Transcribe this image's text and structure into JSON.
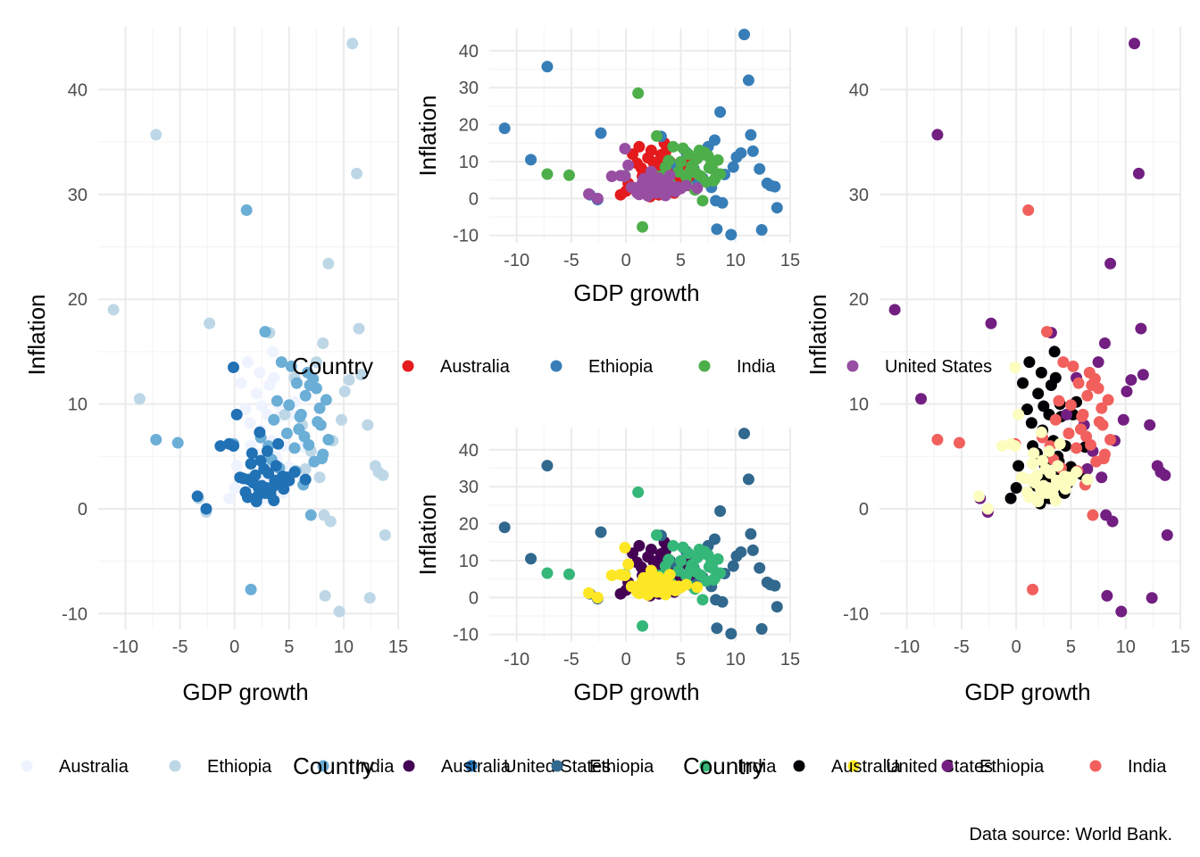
{
  "caption": "Data source: World Bank.",
  "legend_title": "Country",
  "countries": [
    "Australia",
    "Ethiopia",
    "India",
    "United States"
  ],
  "palettes": {
    "set1": [
      "#e41a1c",
      "#377eb8",
      "#4daf4a",
      "#984ea3"
    ],
    "blues": [
      "#eff3ff",
      "#bdd7e7",
      "#6baed6",
      "#2171b5"
    ],
    "viridis": [
      "#440154",
      "#31688e",
      "#35b779",
      "#fde725"
    ],
    "magma": [
      "#000004",
      "#721f81",
      "#f1605d",
      "#fcfdbf"
    ]
  },
  "chart_data": [
    {
      "id": "A",
      "type": "scatter",
      "xlabel": "GDP growth",
      "ylabel": "Inflation",
      "xlim": [
        -12.5,
        15
      ],
      "ylim": [
        -11.5,
        46
      ],
      "x_ticks": [
        -10,
        -5,
        0,
        5,
        10,
        15
      ],
      "y_ticks": [
        -10,
        0,
        10,
        20,
        30,
        40
      ],
      "palette": "blues",
      "grid": true
    },
    {
      "id": "B",
      "type": "scatter",
      "xlabel": "GDP growth",
      "ylabel": "Inflation",
      "xlim": [
        -12.5,
        15
      ],
      "ylim": [
        -12,
        46
      ],
      "x_ticks": [
        -10,
        -5,
        0,
        5,
        10,
        15
      ],
      "y_ticks": [
        -10,
        0,
        10,
        20,
        30,
        40
      ],
      "palette": "set1",
      "grid": true,
      "legend": "bottom"
    },
    {
      "id": "C",
      "type": "scatter",
      "xlabel": "GDP growth",
      "ylabel": "Inflation",
      "xlim": [
        -12.5,
        15
      ],
      "ylim": [
        -12,
        46
      ],
      "x_ticks": [
        -10,
        -5,
        0,
        5,
        10,
        15
      ],
      "y_ticks": [
        -10,
        0,
        10,
        20,
        30,
        40
      ],
      "palette": "viridis",
      "grid": true
    },
    {
      "id": "D",
      "type": "scatter",
      "xlabel": "GDP growth",
      "ylabel": "Inflation",
      "xlim": [
        -12.5,
        15
      ],
      "ylim": [
        -11.5,
        46
      ],
      "x_ticks": [
        -10,
        -5,
        0,
        5,
        10,
        15
      ],
      "y_ticks": [
        -10,
        0,
        10,
        20,
        30,
        40
      ],
      "palette": "magma",
      "grid": true
    }
  ],
  "series_data": {
    "Australia": [
      [
        3.8,
        5.0
      ],
      [
        2.1,
        3.0
      ],
      [
        1.5,
        6.0
      ],
      [
        4.2,
        2.0
      ],
      [
        3.0,
        9.0
      ],
      [
        1.2,
        14.0
      ],
      [
        3.5,
        15.0
      ],
      [
        2.0,
        11.0
      ],
      [
        5.2,
        9.0
      ],
      [
        2.4,
        7.5
      ],
      [
        4.5,
        6.0
      ],
      [
        0.6,
        12.0
      ],
      [
        3.9,
        4.5
      ],
      [
        2.8,
        3.2
      ],
      [
        3.3,
        2.5
      ],
      [
        4.4,
        1.5
      ],
      [
        2.6,
        4.2
      ],
      [
        3.0,
        1.0
      ],
      [
        1.8,
        2.2
      ],
      [
        3.7,
        3.6
      ],
      [
        4.0,
        10.0
      ],
      [
        1.0,
        9.5
      ],
      [
        2.2,
        0.5
      ],
      [
        0.0,
        2.0
      ],
      [
        2.9,
        4.7
      ],
      [
        3.4,
        6.5
      ],
      [
        5.0,
        4.0
      ],
      [
        6.0,
        3.3
      ],
      [
        2.7,
        1.8
      ],
      [
        3.9,
        2.8
      ],
      [
        4.7,
        2.4
      ],
      [
        2.5,
        9.8
      ],
      [
        3.6,
        12.5
      ],
      [
        1.4,
        8.2
      ],
      [
        0.2,
        4.1
      ],
      [
        -0.5,
        1.0
      ],
      [
        4.1,
        8.8
      ],
      [
        2.3,
        13.0
      ],
      [
        3.2,
        11.8
      ],
      [
        5.5,
        10.2
      ],
      [
        6.3,
        5.9
      ],
      [
        1.9,
        5.3
      ]
    ],
    "Ethiopia": [
      [
        10.8,
        44.4
      ],
      [
        -7.2,
        35.7
      ],
      [
        11.2,
        32.0
      ],
      [
        8.6,
        23.4
      ],
      [
        -11.1,
        19.0
      ],
      [
        11.4,
        17.2
      ],
      [
        12.2,
        8.0
      ],
      [
        -8.7,
        10.5
      ],
      [
        13.2,
        3.5
      ],
      [
        13.6,
        3.2
      ],
      [
        13.8,
        -2.5
      ],
      [
        12.4,
        -8.5
      ],
      [
        9.6,
        -9.8
      ],
      [
        8.3,
        -8.3
      ],
      [
        8.2,
        -0.6
      ],
      [
        8.1,
        15.8
      ],
      [
        9.0,
        6.5
      ],
      [
        10.5,
        12.3
      ],
      [
        11.6,
        12.8
      ],
      [
        7.0,
        5.5
      ],
      [
        6.2,
        8.0
      ],
      [
        9.8,
        8.5
      ],
      [
        10.1,
        11.2
      ],
      [
        -2.3,
        17.7
      ],
      [
        -3.3,
        1.0
      ],
      [
        -2.6,
        -0.3
      ],
      [
        6.5,
        3.8
      ],
      [
        5.5,
        12.5
      ],
      [
        7.5,
        14.0
      ],
      [
        4.6,
        9.0
      ],
      [
        3.2,
        16.8
      ],
      [
        8.8,
        -1.2
      ],
      [
        7.8,
        3.0
      ],
      [
        12.9,
        4.1
      ]
    ],
    "India": [
      [
        1.1,
        28.5
      ],
      [
        -7.2,
        6.6
      ],
      [
        -5.2,
        6.3
      ],
      [
        -0.1,
        6.2
      ],
      [
        1.5,
        -7.7
      ],
      [
        2.8,
        16.9
      ],
      [
        4.3,
        14.0
      ],
      [
        5.2,
        13.6
      ],
      [
        6.7,
        13.0
      ],
      [
        7.2,
        12.4
      ],
      [
        6.5,
        10.8
      ],
      [
        7.5,
        11.5
      ],
      [
        6.1,
        9.0
      ],
      [
        5.0,
        9.9
      ],
      [
        6.0,
        8.8
      ],
      [
        8.4,
        10.4
      ],
      [
        7.8,
        9.6
      ],
      [
        3.6,
        8.5
      ],
      [
        4.8,
        7.2
      ],
      [
        5.5,
        5.8
      ],
      [
        6.8,
        6.1
      ],
      [
        7.3,
        4.5
      ],
      [
        8.1,
        5.2
      ],
      [
        3.1,
        6.0
      ],
      [
        4.1,
        3.9
      ],
      [
        6.3,
        2.3
      ],
      [
        5.6,
        3.6
      ],
      [
        7.9,
        8.0
      ],
      [
        8.6,
        6.6
      ],
      [
        6.9,
        11.8
      ],
      [
        5.7,
        12.0
      ],
      [
        3.9,
        10.3
      ],
      [
        7.0,
        -0.6
      ],
      [
        8.0,
        4.8
      ],
      [
        4.5,
        2.5
      ],
      [
        5.9,
        7.6
      ],
      [
        6.4,
        6.9
      ],
      [
        7.6,
        8.3
      ],
      [
        3.4,
        4.7
      ],
      [
        2.4,
        6.8
      ]
    ],
    "United States": [
      [
        -2.6,
        0.0
      ],
      [
        -3.4,
        1.2
      ],
      [
        -0.1,
        6.0
      ],
      [
        1.3,
        2.8
      ],
      [
        2.2,
        2.0
      ],
      [
        3.5,
        2.1
      ],
      [
        4.2,
        2.5
      ],
      [
        2.8,
        1.5
      ],
      [
        1.9,
        3.2
      ],
      [
        3.1,
        3.4
      ],
      [
        4.5,
        1.9
      ],
      [
        5.0,
        2.7
      ],
      [
        2.4,
        4.6
      ],
      [
        0.5,
        3.0
      ],
      [
        -1.3,
        6.0
      ],
      [
        -0.5,
        6.2
      ],
      [
        3.8,
        4.1
      ],
      [
        4.4,
        3.1
      ],
      [
        2.7,
        3.8
      ],
      [
        1.0,
        1.6
      ],
      [
        1.7,
        2.5
      ],
      [
        2.9,
        2.0
      ],
      [
        3.3,
        1.4
      ],
      [
        4.8,
        3.0
      ],
      [
        5.5,
        3.5
      ],
      [
        1.5,
        4.3
      ],
      [
        2.0,
        0.7
      ],
      [
        3.7,
        2.7
      ],
      [
        2.5,
        2.2
      ],
      [
        1.2,
        1.1
      ],
      [
        0.8,
        2.9
      ],
      [
        6.5,
        2.8
      ],
      [
        -0.1,
        13.5
      ],
      [
        0.2,
        9.0
      ],
      [
        3.0,
        5.5
      ],
      [
        4.0,
        6.2
      ],
      [
        2.3,
        7.3
      ],
      [
        1.6,
        5.3
      ],
      [
        3.6,
        0.8
      ],
      [
        2.1,
        1.2
      ]
    ]
  }
}
